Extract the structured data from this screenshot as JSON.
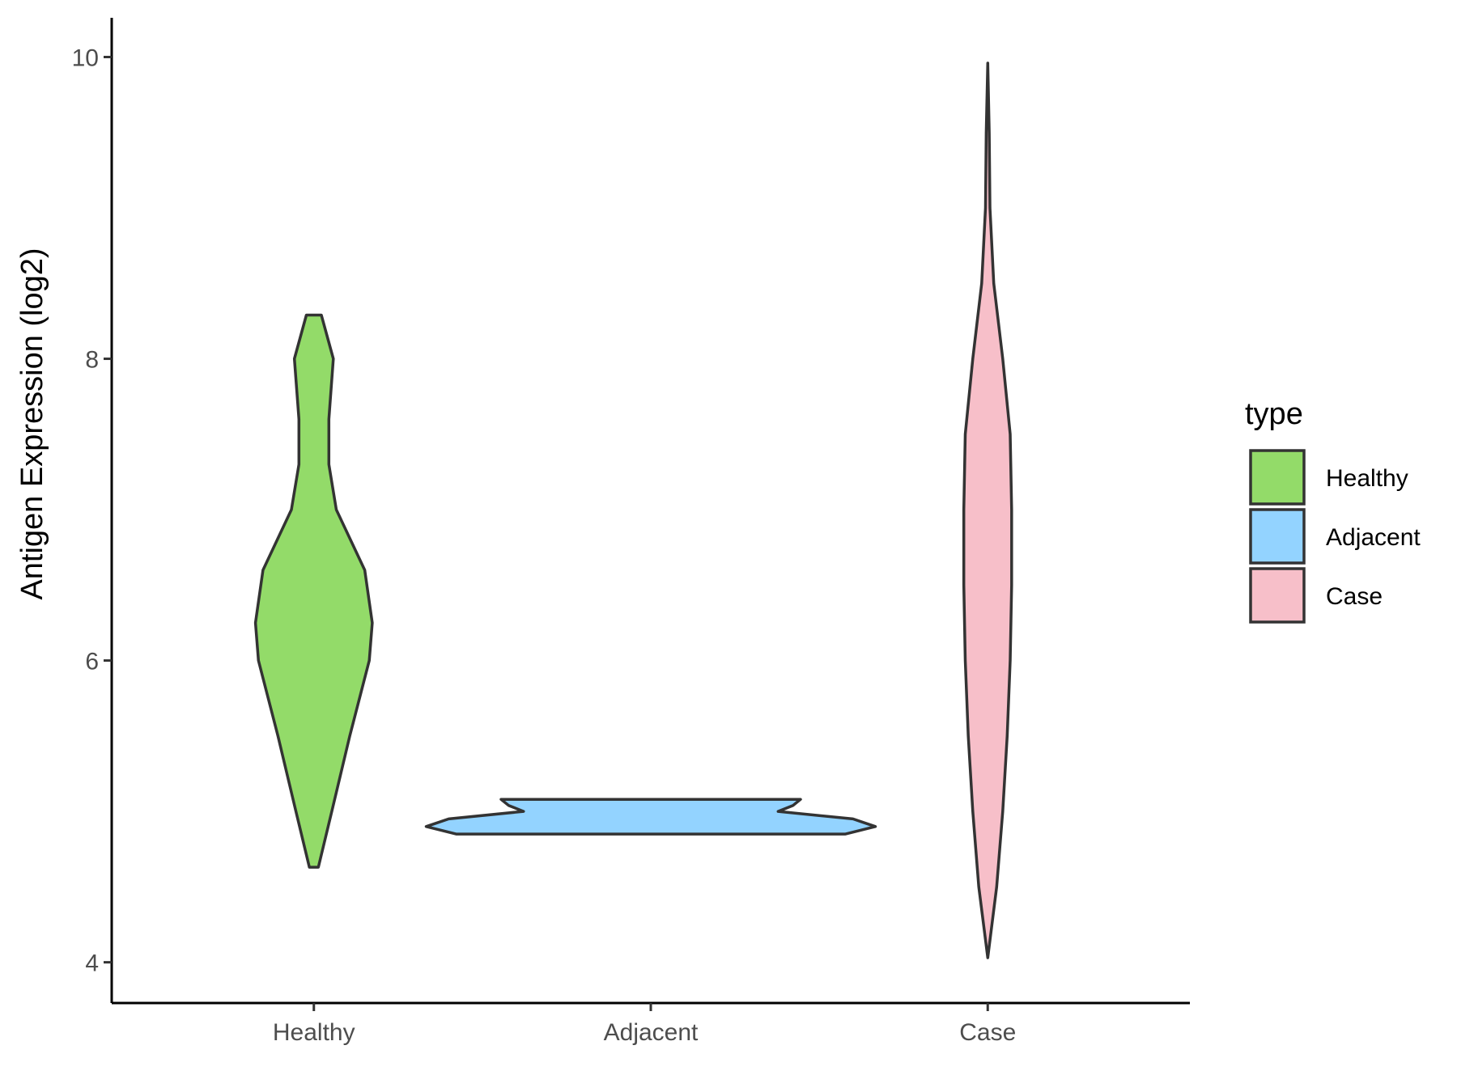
{
  "chart_data": {
    "type": "violin",
    "ylabel": "Antigen Expression (log2)",
    "xlabel": "",
    "ylim": [
      3.73,
      10.26
    ],
    "yticks": [
      4,
      6,
      8,
      10
    ],
    "categories": [
      "Healthy",
      "Adjacent",
      "Case"
    ],
    "grid": false,
    "legend": {
      "title": "type",
      "placement": "right",
      "entries": [
        "Healthy",
        "Adjacent",
        "Case"
      ]
    },
    "colors": {
      "Healthy": "#93db69",
      "Adjacent": "#93d3ff",
      "Case": "#f7bfc9",
      "outline": "#333333"
    },
    "violins": [
      {
        "category": "Healthy",
        "min": 4.63,
        "max": 8.29,
        "profile": [
          [
            4.63,
            0.03
          ],
          [
            5.0,
            0.12
          ],
          [
            5.5,
            0.24
          ],
          [
            6.0,
            0.37
          ],
          [
            6.25,
            0.39
          ],
          [
            6.6,
            0.34
          ],
          [
            7.0,
            0.15
          ],
          [
            7.3,
            0.1
          ],
          [
            7.6,
            0.1
          ],
          [
            8.0,
            0.13
          ],
          [
            8.29,
            0.05
          ]
        ]
      },
      {
        "category": "Adjacent",
        "min": 4.85,
        "max": 5.08,
        "profile": [
          [
            4.85,
            1.3
          ],
          [
            4.9,
            1.5
          ],
          [
            4.95,
            1.35
          ],
          [
            5.0,
            0.85
          ],
          [
            5.04,
            0.95
          ],
          [
            5.08,
            1.0
          ]
        ]
      },
      {
        "category": "Case",
        "min": 4.03,
        "max": 9.96,
        "profile": [
          [
            4.03,
            0.0
          ],
          [
            4.5,
            0.06
          ],
          [
            5.0,
            0.1
          ],
          [
            5.5,
            0.13
          ],
          [
            6.0,
            0.15
          ],
          [
            6.5,
            0.16
          ],
          [
            7.0,
            0.16
          ],
          [
            7.5,
            0.15
          ],
          [
            8.0,
            0.1
          ],
          [
            8.5,
            0.04
          ],
          [
            9.0,
            0.015
          ],
          [
            9.5,
            0.01
          ],
          [
            9.96,
            0.0
          ]
        ]
      }
    ]
  }
}
